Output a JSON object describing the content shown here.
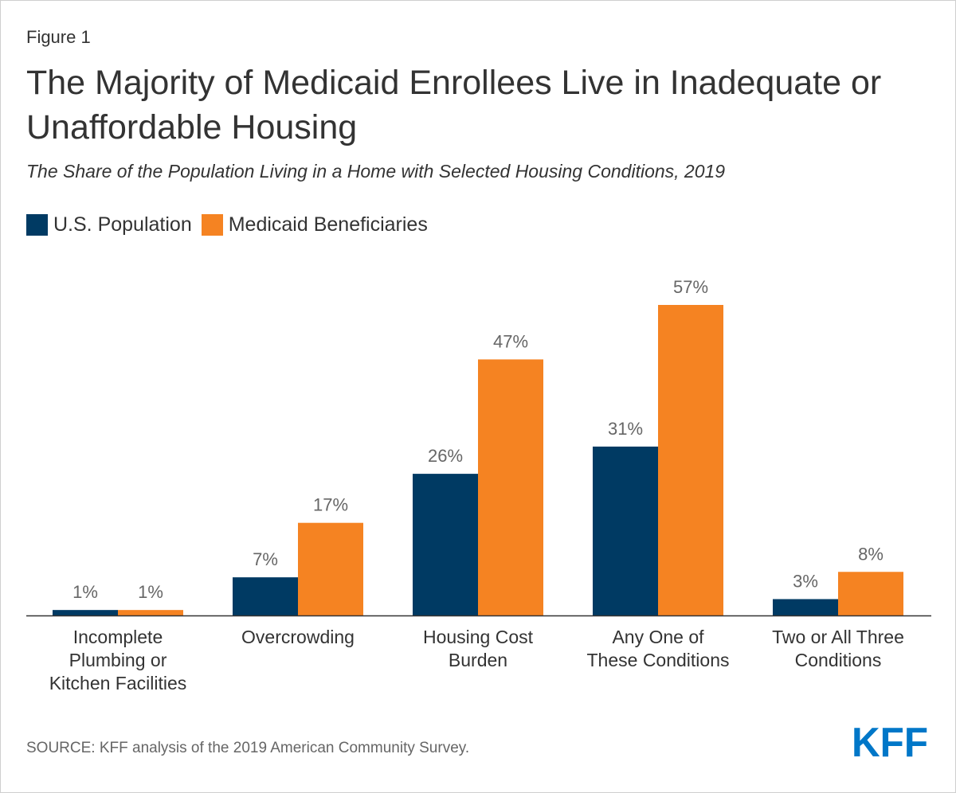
{
  "figure_label": "Figure 1",
  "title": "The Majority of Medicaid Enrollees Live in Inadequate or Unaffordable Housing",
  "subtitle": "The Share of the Population Living in a Home with Selected Housing Conditions, 2019",
  "source": "SOURCE: KFF analysis of the 2019 American Community Survey.",
  "logo_text": "KFF",
  "colors": {
    "us_population": "#003a63",
    "medicaid": "#f58322",
    "axis": "#333333",
    "label": "#666666",
    "logo": "#0077c8"
  },
  "chart_data": {
    "type": "bar",
    "categories": [
      [
        "Incomplete",
        "Plumbing or",
        "Kitchen Facilities"
      ],
      [
        "Overcrowding"
      ],
      [
        "Housing Cost",
        "Burden"
      ],
      [
        "Any One of",
        "These Conditions"
      ],
      [
        "Two or All Three",
        "Conditions"
      ]
    ],
    "series": [
      {
        "name": "U.S. Population",
        "color": "#003a63",
        "values": [
          1,
          7,
          26,
          31,
          3
        ]
      },
      {
        "name": "Medicaid Beneficiaries",
        "color": "#f58322",
        "values": [
          1,
          17,
          47,
          57,
          8
        ]
      }
    ],
    "value_suffix": "%",
    "ylim": [
      0,
      57
    ],
    "legend": "top-left",
    "grid": false
  }
}
